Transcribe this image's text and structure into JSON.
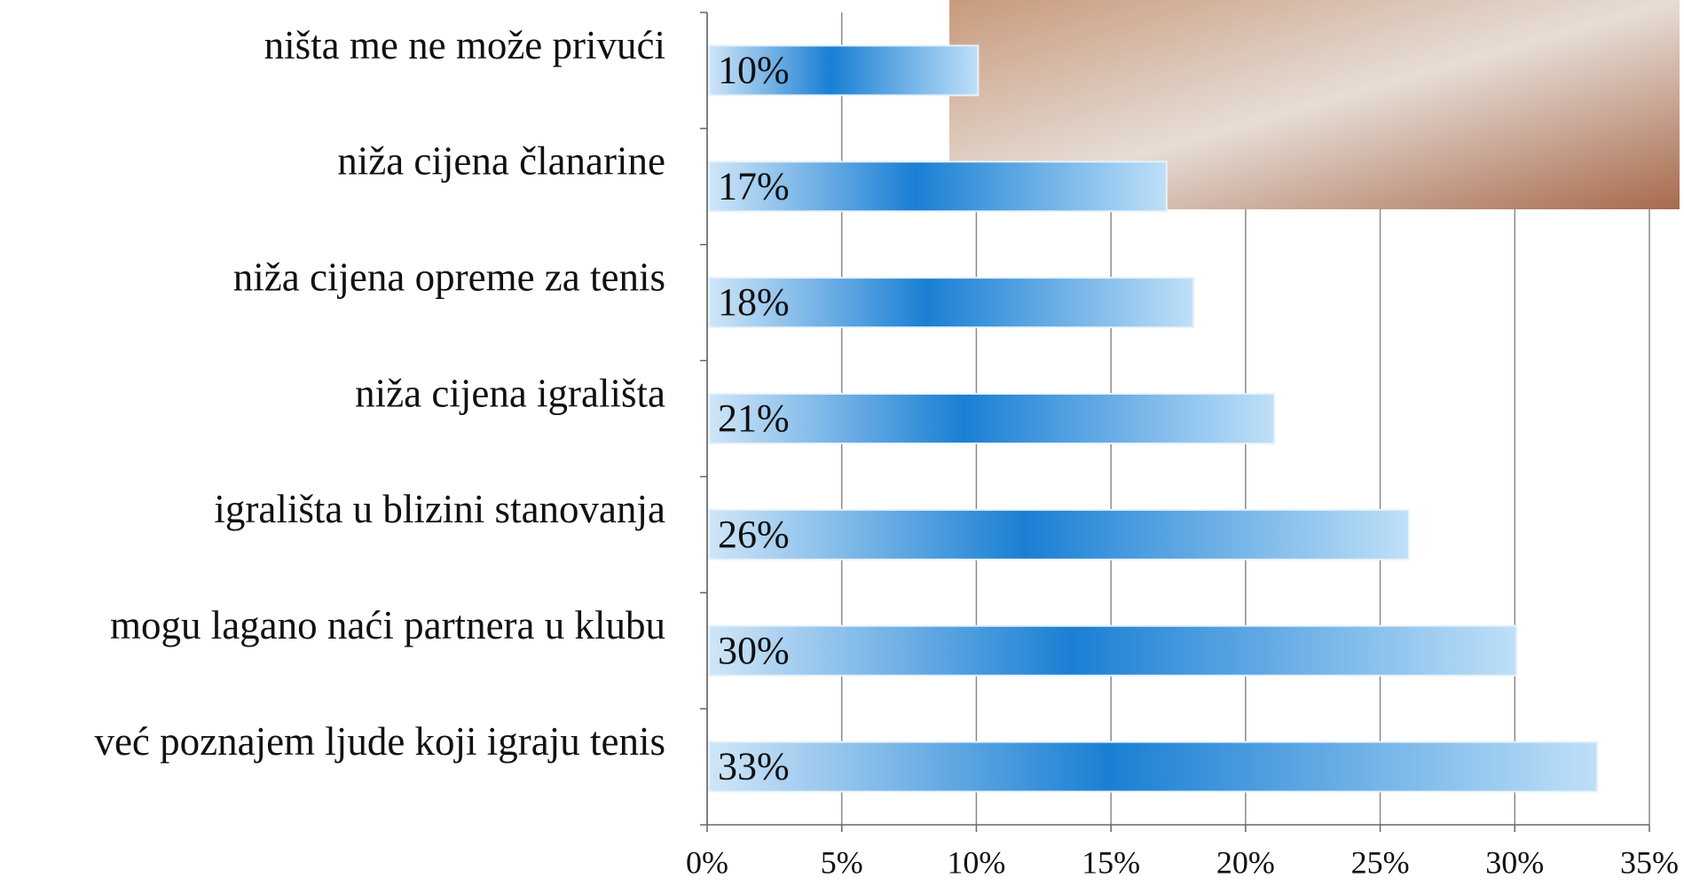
{
  "chart_data": {
    "type": "hbar",
    "categories": [
      "ništa me ne može privući",
      "niža cijena članarine",
      "niža cijena opreme za tenis",
      "niža cijena igrališta",
      "igrališta u blizini stanovanja",
      "mogu lagano naći partnera u klubu",
      "već poznajem ljude koji igraju tenis"
    ],
    "values": [
      10,
      17,
      18,
      21,
      26,
      30,
      33
    ],
    "value_labels": [
      "10%",
      "17%",
      "18%",
      "21%",
      "26%",
      "30%",
      "33%"
    ],
    "color": "#1a7fd4",
    "xlim": [
      0,
      35
    ],
    "xticks": [
      {
        "value": 0,
        "label": "0%"
      },
      {
        "value": 5,
        "label": "5%"
      },
      {
        "value": 10,
        "label": "10%"
      },
      {
        "value": 15,
        "label": "15%"
      },
      {
        "value": 20,
        "label": "20%"
      },
      {
        "value": 25,
        "label": "25%"
      },
      {
        "value": 30,
        "label": "30%"
      },
      {
        "value": 35,
        "label": "35%"
      }
    ],
    "grid": true
  }
}
